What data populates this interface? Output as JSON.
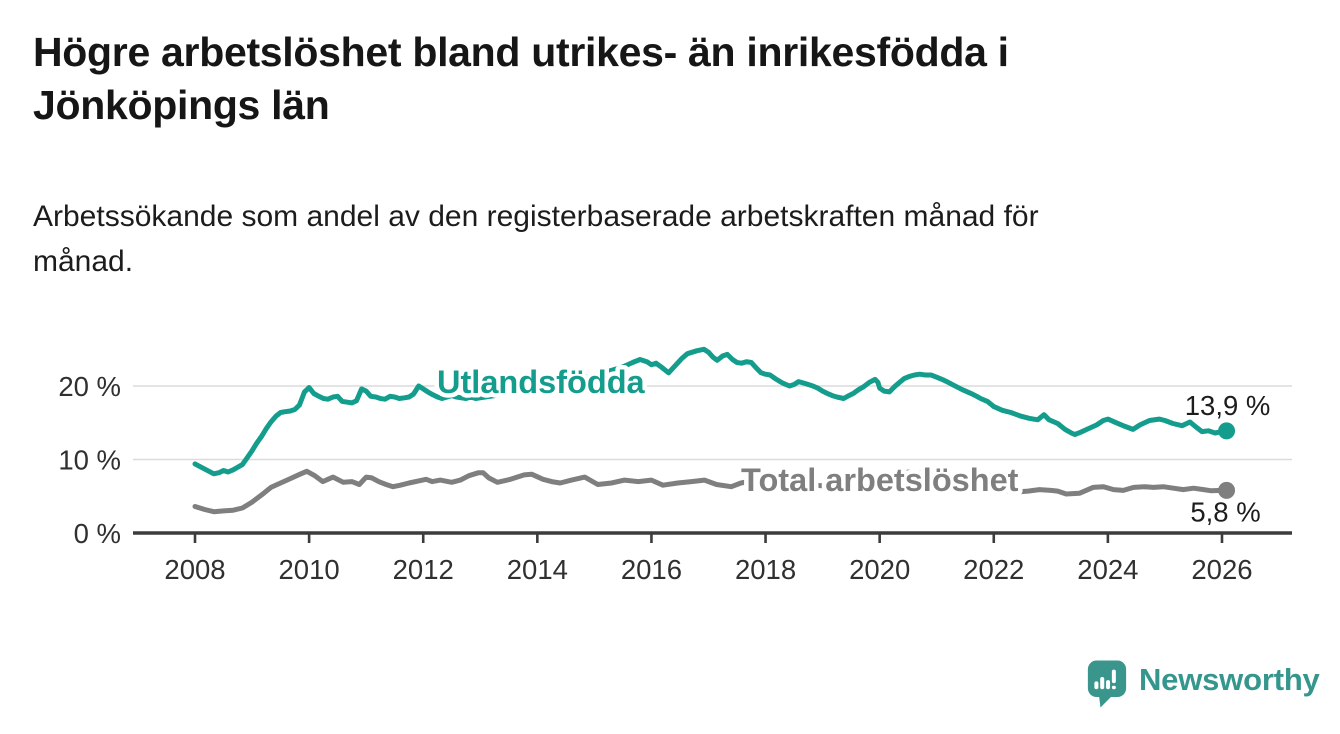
{
  "title": {
    "text": "Högre arbetslöshet bland utrikes- än inrikesfödda i Jönköpings län",
    "lines": [
      "Högre arbetslöshet bland utrikes- än inrikesfödda i",
      "Jönköpings län"
    ]
  },
  "subtitle": {
    "text": "Arbetssökande som andel av den registerbaserade arbetskraften månad för månad.",
    "lines": [
      "Arbetssökande som andel av den registerbaserade arbetskraften månad för",
      "månad."
    ]
  },
  "branding": {
    "logo_text": "Newsworthy",
    "logo_color": "#35968E",
    "logo_icon": "speech-bubble-bar-chart"
  },
  "colors": {
    "background": "#ffffff",
    "series_foreign_born": "#149D8D",
    "series_total": "#7F7F7F",
    "axis": "#3C3C3C",
    "tick_text": "#303030",
    "gridline": "#DBDBDB",
    "value_label": "#1D1D1D"
  },
  "chart_data": {
    "type": "line",
    "title": "Högre arbetslöshet bland utrikes- än inrikesfödda i Jönköpings län",
    "subtitle": "Arbetssökande som andel av den registerbaserade arbetskraften månad för månad.",
    "xlabel": "",
    "ylabel": "",
    "y_unit": "%",
    "grid": "horizontal",
    "legend": "inline-labels",
    "xlim": [
      2007.3,
      2027.2
    ],
    "ylim": [
      0,
      26
    ],
    "x_ticks": [
      2008,
      2010,
      2012,
      2014,
      2016,
      2018,
      2020,
      2022,
      2024,
      2026
    ],
    "y_ticks": [
      {
        "value": 0,
        "label": "0 %"
      },
      {
        "value": 10,
        "label": "10 %"
      },
      {
        "value": 20,
        "label": "20 %"
      }
    ],
    "series": [
      {
        "name": "Utlandsfödda",
        "color": "#149D8D",
        "end_label": "13,9 %",
        "end_value": 13.9,
        "points": [
          [
            2008.0,
            9.4
          ],
          [
            2008.17,
            8.7
          ],
          [
            2008.33,
            8.05
          ],
          [
            2008.42,
            8.2
          ],
          [
            2008.5,
            8.5
          ],
          [
            2008.58,
            8.3
          ],
          [
            2008.67,
            8.6
          ],
          [
            2008.83,
            9.3
          ],
          [
            2008.92,
            10.3
          ],
          [
            2009.0,
            11.2
          ],
          [
            2009.08,
            12.2
          ],
          [
            2009.17,
            13.2
          ],
          [
            2009.25,
            14.2
          ],
          [
            2009.33,
            15.1
          ],
          [
            2009.42,
            15.9
          ],
          [
            2009.5,
            16.4
          ],
          [
            2009.58,
            16.5
          ],
          [
            2009.67,
            16.6
          ],
          [
            2009.75,
            16.8
          ],
          [
            2009.83,
            17.4
          ],
          [
            2009.92,
            19.2
          ],
          [
            2010.0,
            19.8
          ],
          [
            2010.08,
            19.0
          ],
          [
            2010.17,
            18.6
          ],
          [
            2010.25,
            18.3
          ],
          [
            2010.33,
            18.2
          ],
          [
            2010.42,
            18.5
          ],
          [
            2010.5,
            18.6
          ],
          [
            2010.58,
            17.9
          ],
          [
            2010.67,
            17.8
          ],
          [
            2010.75,
            17.7
          ],
          [
            2010.83,
            18.0
          ],
          [
            2010.92,
            19.6
          ],
          [
            2011.0,
            19.3
          ],
          [
            2011.08,
            18.6
          ],
          [
            2011.17,
            18.5
          ],
          [
            2011.25,
            18.3
          ],
          [
            2011.33,
            18.2
          ],
          [
            2011.42,
            18.6
          ],
          [
            2011.5,
            18.5
          ],
          [
            2011.58,
            18.3
          ],
          [
            2011.67,
            18.4
          ],
          [
            2011.75,
            18.5
          ],
          [
            2011.83,
            18.9
          ],
          [
            2011.92,
            20.0
          ],
          [
            2012.0,
            19.6
          ],
          [
            2012.08,
            19.2
          ],
          [
            2012.17,
            18.8
          ],
          [
            2012.25,
            18.5
          ],
          [
            2012.33,
            18.3
          ],
          [
            2012.42,
            18.5
          ],
          [
            2012.5,
            18.7
          ],
          [
            2012.58,
            18.5
          ],
          [
            2012.67,
            18.4
          ],
          [
            2012.75,
            18.3
          ],
          [
            2012.83,
            18.5
          ],
          [
            2012.92,
            18.3
          ],
          [
            2013.0,
            18.4
          ],
          [
            2013.25,
            18.7
          ],
          [
            2013.5,
            19.1
          ],
          [
            2013.75,
            19.4
          ],
          [
            2014.0,
            19.8
          ],
          [
            2014.25,
            20.1
          ],
          [
            2014.5,
            20.5
          ],
          [
            2014.75,
            21.0
          ],
          [
            2015.0,
            21.5
          ],
          [
            2015.25,
            22.0
          ],
          [
            2015.5,
            22.6
          ],
          [
            2015.67,
            23.2
          ],
          [
            2015.8,
            23.6
          ],
          [
            2015.92,
            23.3
          ],
          [
            2016.0,
            22.9
          ],
          [
            2016.08,
            23.1
          ],
          [
            2016.17,
            22.6
          ],
          [
            2016.3,
            21.8
          ],
          [
            2016.42,
            22.8
          ],
          [
            2016.54,
            23.8
          ],
          [
            2016.63,
            24.4
          ],
          [
            2016.8,
            24.8
          ],
          [
            2016.92,
            25.0
          ],
          [
            2017.0,
            24.6
          ],
          [
            2017.08,
            23.9
          ],
          [
            2017.15,
            23.5
          ],
          [
            2017.25,
            24.1
          ],
          [
            2017.33,
            24.3
          ],
          [
            2017.42,
            23.6
          ],
          [
            2017.5,
            23.2
          ],
          [
            2017.58,
            23.1
          ],
          [
            2017.67,
            23.3
          ],
          [
            2017.75,
            23.2
          ],
          [
            2017.83,
            22.5
          ],
          [
            2017.92,
            21.8
          ],
          [
            2018.0,
            21.6
          ],
          [
            2018.08,
            21.5
          ],
          [
            2018.17,
            21.0
          ],
          [
            2018.3,
            20.4
          ],
          [
            2018.42,
            20.0
          ],
          [
            2018.5,
            20.2
          ],
          [
            2018.58,
            20.6
          ],
          [
            2018.67,
            20.4
          ],
          [
            2018.75,
            20.2
          ],
          [
            2018.83,
            20.0
          ],
          [
            2018.92,
            19.7
          ],
          [
            2019.0,
            19.3
          ],
          [
            2019.08,
            19.0
          ],
          [
            2019.17,
            18.7
          ],
          [
            2019.25,
            18.5
          ],
          [
            2019.37,
            18.3
          ],
          [
            2019.46,
            18.7
          ],
          [
            2019.54,
            19.0
          ],
          [
            2019.63,
            19.5
          ],
          [
            2019.72,
            19.9
          ],
          [
            2019.82,
            20.5
          ],
          [
            2019.92,
            20.9
          ],
          [
            2019.97,
            20.5
          ],
          [
            2020.0,
            19.7
          ],
          [
            2020.08,
            19.3
          ],
          [
            2020.17,
            19.2
          ],
          [
            2020.26,
            19.9
          ],
          [
            2020.35,
            20.5
          ],
          [
            2020.43,
            21.0
          ],
          [
            2020.52,
            21.3
          ],
          [
            2020.61,
            21.5
          ],
          [
            2020.7,
            21.6
          ],
          [
            2020.8,
            21.5
          ],
          [
            2020.9,
            21.5
          ],
          [
            2021.0,
            21.2
          ],
          [
            2021.12,
            20.8
          ],
          [
            2021.2,
            20.5
          ],
          [
            2021.3,
            20.1
          ],
          [
            2021.45,
            19.5
          ],
          [
            2021.6,
            19.0
          ],
          [
            2021.7,
            18.6
          ],
          [
            2021.77,
            18.3
          ],
          [
            2021.89,
            17.9
          ],
          [
            2022.0,
            17.2
          ],
          [
            2022.15,
            16.7
          ],
          [
            2022.3,
            16.4
          ],
          [
            2022.47,
            15.9
          ],
          [
            2022.62,
            15.6
          ],
          [
            2022.77,
            15.4
          ],
          [
            2022.88,
            16.1
          ],
          [
            2022.97,
            15.4
          ],
          [
            2023.12,
            14.9
          ],
          [
            2023.25,
            14.1
          ],
          [
            2023.36,
            13.6
          ],
          [
            2023.42,
            13.4
          ],
          [
            2023.52,
            13.7
          ],
          [
            2023.63,
            14.1
          ],
          [
            2023.8,
            14.7
          ],
          [
            2023.92,
            15.3
          ],
          [
            2024.0,
            15.5
          ],
          [
            2024.15,
            15.0
          ],
          [
            2024.3,
            14.5
          ],
          [
            2024.44,
            14.1
          ],
          [
            2024.56,
            14.7
          ],
          [
            2024.73,
            15.3
          ],
          [
            2024.9,
            15.5
          ],
          [
            2025.0,
            15.3
          ],
          [
            2025.14,
            14.9
          ],
          [
            2025.3,
            14.6
          ],
          [
            2025.44,
            15.1
          ],
          [
            2025.53,
            14.5
          ],
          [
            2025.65,
            13.8
          ],
          [
            2025.76,
            13.9
          ],
          [
            2025.88,
            13.6
          ],
          [
            2026.0,
            13.8
          ],
          [
            2026.08,
            13.9
          ]
        ]
      },
      {
        "name": "Total arbetslöshet",
        "color": "#7F7F7F",
        "end_label": "5,8 %",
        "end_value": 5.8,
        "points": [
          [
            2008.0,
            3.6
          ],
          [
            2008.17,
            3.2
          ],
          [
            2008.33,
            2.9
          ],
          [
            2008.5,
            3.0
          ],
          [
            2008.67,
            3.1
          ],
          [
            2008.83,
            3.4
          ],
          [
            2009.0,
            4.2
          ],
          [
            2009.17,
            5.2
          ],
          [
            2009.33,
            6.2
          ],
          [
            2009.5,
            6.8
          ],
          [
            2009.67,
            7.4
          ],
          [
            2009.84,
            8.0
          ],
          [
            2009.96,
            8.4
          ],
          [
            2010.1,
            7.8
          ],
          [
            2010.24,
            7.0
          ],
          [
            2010.33,
            7.3
          ],
          [
            2010.42,
            7.6
          ],
          [
            2010.6,
            6.9
          ],
          [
            2010.75,
            7.0
          ],
          [
            2010.88,
            6.6
          ],
          [
            2011.0,
            7.6
          ],
          [
            2011.1,
            7.5
          ],
          [
            2011.22,
            7.0
          ],
          [
            2011.35,
            6.6
          ],
          [
            2011.47,
            6.3
          ],
          [
            2011.6,
            6.5
          ],
          [
            2011.75,
            6.8
          ],
          [
            2011.93,
            7.1
          ],
          [
            2012.05,
            7.3
          ],
          [
            2012.16,
            7.0
          ],
          [
            2012.3,
            7.2
          ],
          [
            2012.5,
            6.9
          ],
          [
            2012.65,
            7.2
          ],
          [
            2012.8,
            7.8
          ],
          [
            2012.97,
            8.2
          ],
          [
            2013.05,
            8.2
          ],
          [
            2013.15,
            7.5
          ],
          [
            2013.3,
            6.9
          ],
          [
            2013.53,
            7.3
          ],
          [
            2013.77,
            7.9
          ],
          [
            2013.9,
            8.0
          ],
          [
            2014.1,
            7.3
          ],
          [
            2014.25,
            7.0
          ],
          [
            2014.4,
            6.8
          ],
          [
            2014.6,
            7.2
          ],
          [
            2014.83,
            7.6
          ],
          [
            2015.06,
            6.6
          ],
          [
            2015.3,
            6.8
          ],
          [
            2015.53,
            7.2
          ],
          [
            2015.77,
            7.0
          ],
          [
            2016.0,
            7.2
          ],
          [
            2016.2,
            6.5
          ],
          [
            2016.46,
            6.8
          ],
          [
            2016.7,
            7.0
          ],
          [
            2016.93,
            7.2
          ],
          [
            2017.14,
            6.6
          ],
          [
            2017.4,
            6.3
          ],
          [
            2017.57,
            6.8
          ],
          [
            2017.7,
            7.0
          ],
          [
            2017.9,
            6.9
          ],
          [
            2018.1,
            6.6
          ],
          [
            2018.3,
            6.4
          ],
          [
            2018.5,
            6.3
          ],
          [
            2018.7,
            6.4
          ],
          [
            2018.9,
            6.5
          ],
          [
            2019.1,
            6.3
          ],
          [
            2019.3,
            6.2
          ],
          [
            2019.5,
            6.3
          ],
          [
            2019.7,
            6.4
          ],
          [
            2019.9,
            6.5
          ],
          [
            2020.1,
            6.8
          ],
          [
            2020.3,
            7.8
          ],
          [
            2020.5,
            8.3
          ],
          [
            2020.7,
            8.2
          ],
          [
            2020.9,
            7.9
          ],
          [
            2021.1,
            7.6
          ],
          [
            2021.3,
            7.3
          ],
          [
            2021.5,
            7.0
          ],
          [
            2021.7,
            6.6
          ],
          [
            2021.9,
            6.2
          ],
          [
            2022.1,
            5.9
          ],
          [
            2022.3,
            5.7
          ],
          [
            2022.45,
            5.6
          ],
          [
            2022.6,
            5.7
          ],
          [
            2022.8,
            5.9
          ],
          [
            2023.0,
            5.8
          ],
          [
            2023.12,
            5.7
          ],
          [
            2023.27,
            5.3
          ],
          [
            2023.5,
            5.4
          ],
          [
            2023.74,
            6.2
          ],
          [
            2023.92,
            6.3
          ],
          [
            2024.1,
            5.9
          ],
          [
            2024.27,
            5.8
          ],
          [
            2024.45,
            6.2
          ],
          [
            2024.65,
            6.3
          ],
          [
            2024.8,
            6.2
          ],
          [
            2024.97,
            6.3
          ],
          [
            2025.15,
            6.1
          ],
          [
            2025.32,
            5.9
          ],
          [
            2025.5,
            6.1
          ],
          [
            2025.68,
            5.9
          ],
          [
            2025.8,
            5.75
          ],
          [
            2026.0,
            5.8
          ],
          [
            2026.08,
            5.8
          ]
        ]
      }
    ]
  }
}
